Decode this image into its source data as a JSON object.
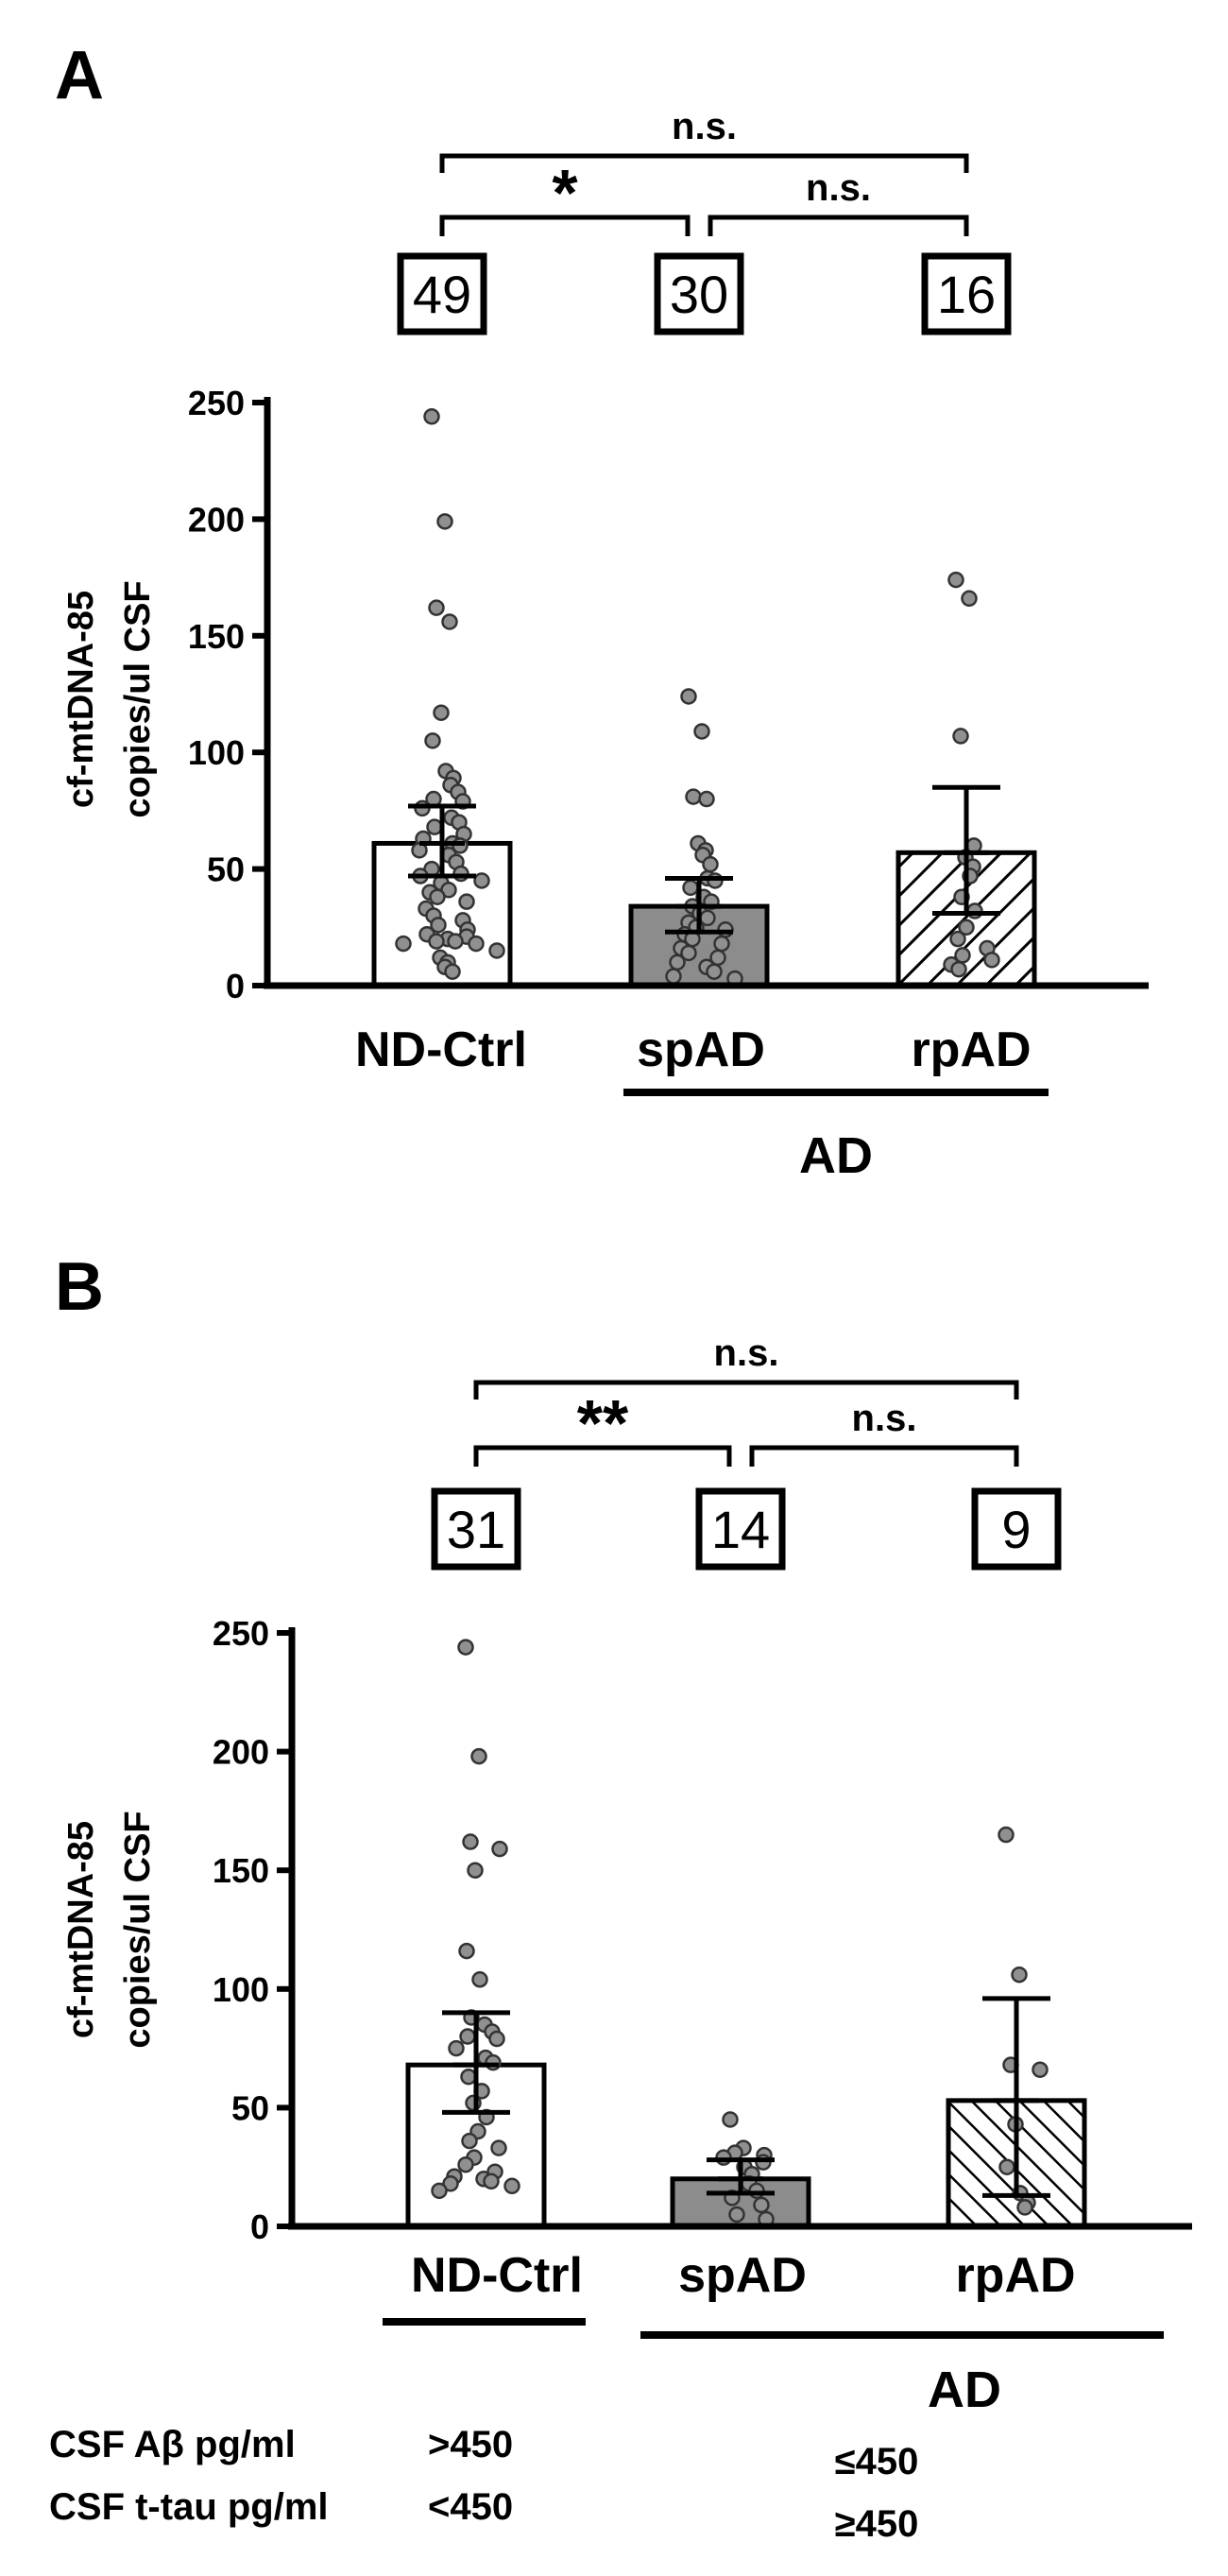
{
  "chart_data": [
    {
      "type": "bar",
      "panel_label": "A",
      "categories": [
        "ND-Ctrl",
        "spAD",
        "rpAD"
      ],
      "group_label": "AD",
      "group_categories": [
        "spAD",
        "rpAD"
      ],
      "counts": [
        "49",
        "30",
        "16"
      ],
      "ylabel_lines": [
        "cf-mtDNA-85",
        "copies/ul CSF"
      ],
      "ylim": [
        0,
        250
      ],
      "yticks": [
        0,
        50,
        100,
        150,
        200,
        250
      ],
      "series": [
        {
          "values": [
            61,
            34,
            57
          ],
          "error_low": [
            47,
            23,
            31
          ],
          "error_high": [
            77,
            46,
            85
          ],
          "fills": [
            "#ffffff",
            "#8c8c8c",
            "hatch"
          ],
          "points": [
            [
              244,
              199,
              162,
              156,
              117,
              105,
              92,
              89,
              86,
              83,
              80,
              79,
              76,
              72,
              70,
              68,
              65,
              63,
              61,
              60,
              58,
              56,
              53,
              50,
              48,
              47,
              45,
              44,
              41,
              40,
              38,
              36,
              33,
              30,
              28,
              26,
              24,
              22,
              21,
              20,
              19,
              19,
              18,
              18,
              15,
              12,
              10,
              8,
              6
            ],
            [
              124,
              109,
              81,
              80,
              61,
              58,
              56,
              52,
              46,
              45,
              42,
              38,
              36,
              34,
              31,
              29,
              27,
              25,
              24,
              22,
              20,
              18,
              16,
              14,
              12,
              10,
              8,
              6,
              4,
              3
            ],
            [
              174,
              166,
              107,
              60,
              55,
              51,
              47,
              38,
              32,
              25,
              20,
              16,
              13,
              11,
              9,
              7
            ]
          ]
        }
      ],
      "comparisons": [
        {
          "from": 0,
          "to": 1,
          "label": "*"
        },
        {
          "from": 1,
          "to": 2,
          "label": "n.s."
        },
        {
          "from": 0,
          "to": 2,
          "label": "n.s."
        }
      ]
    },
    {
      "type": "bar",
      "panel_label": "B",
      "categories": [
        "ND-Ctrl",
        "spAD",
        "rpAD"
      ],
      "group_label": "AD",
      "group_categories": [
        "spAD",
        "rpAD"
      ],
      "counts": [
        "31",
        "14",
        "9"
      ],
      "ylabel_lines": [
        "cf-mtDNA-85",
        "copies/ul CSF"
      ],
      "ylim": [
        0,
        250
      ],
      "yticks": [
        0,
        50,
        100,
        150,
        200,
        250
      ],
      "series": [
        {
          "values": [
            68,
            20,
            53
          ],
          "error_low": [
            48,
            14,
            13
          ],
          "error_high": [
            90,
            28,
            96
          ],
          "fills": [
            "#ffffff",
            "#8c8c8c",
            "hatch"
          ],
          "points": [
            [
              244,
              198,
              162,
              159,
              150,
              116,
              104,
              88,
              85,
              82,
              80,
              79,
              75,
              71,
              69,
              63,
              57,
              52,
              46,
              40,
              36,
              33,
              29,
              26,
              23,
              21,
              20,
              19,
              18,
              17,
              15
            ],
            [
              45,
              33,
              31,
              30,
              29,
              27,
              25,
              22,
              18,
              15,
              12,
              9,
              5,
              3
            ],
            [
              165,
              106,
              68,
              66,
              43,
              25,
              14,
              10,
              8
            ]
          ]
        }
      ],
      "comparisons": [
        {
          "from": 0,
          "to": 1,
          "label": "**"
        },
        {
          "from": 1,
          "to": 2,
          "label": "n.s."
        },
        {
          "from": 0,
          "to": 2,
          "label": "n.s."
        }
      ],
      "criteria": {
        "rows": [
          {
            "label": "CSF Aβ pg/ml",
            "ctrl": ">450",
            "ad": "≤450"
          },
          {
            "label": "CSF t-tau pg/ml",
            "ctrl": "<450",
            "ad": "≥450"
          }
        ]
      }
    }
  ]
}
